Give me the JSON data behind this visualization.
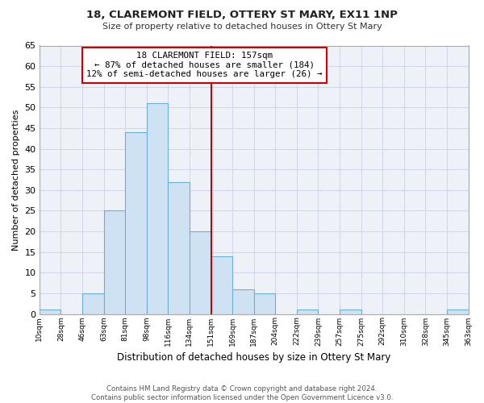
{
  "title": "18, CLAREMONT FIELD, OTTERY ST MARY, EX11 1NP",
  "subtitle": "Size of property relative to detached houses in Ottery St Mary",
  "xlabel": "Distribution of detached houses by size in Ottery St Mary",
  "ylabel": "Number of detached properties",
  "bin_labels": [
    "10sqm",
    "28sqm",
    "46sqm",
    "63sqm",
    "81sqm",
    "98sqm",
    "116sqm",
    "134sqm",
    "151sqm",
    "169sqm",
    "187sqm",
    "204sqm",
    "222sqm",
    "239sqm",
    "257sqm",
    "275sqm",
    "292sqm",
    "310sqm",
    "328sqm",
    "345sqm",
    "363sqm"
  ],
  "bar_heights": [
    1,
    0,
    5,
    25,
    44,
    51,
    32,
    20,
    14,
    6,
    5,
    0,
    1,
    0,
    1,
    0,
    0,
    0,
    0,
    1
  ],
  "bar_color": "#cfe2f3",
  "bar_edge_color": "#6baed6",
  "annotation_title": "18 CLAREMONT FIELD: 157sqm",
  "annotation_line1": "← 87% of detached houses are smaller (184)",
  "annotation_line2": "12% of semi-detached houses are larger (26) →",
  "marker_color": "#cc0000",
  "marker_bar_index": 8,
  "ylim": [
    0,
    65
  ],
  "yticks": [
    0,
    5,
    10,
    15,
    20,
    25,
    30,
    35,
    40,
    45,
    50,
    55,
    60,
    65
  ],
  "footer_line1": "Contains HM Land Registry data © Crown copyright and database right 2024.",
  "footer_line2": "Contains public sector information licensed under the Open Government Licence v3.0.",
  "bg_color": "#ffffff",
  "grid_color": "#d0d8e8",
  "plot_bg_color": "#eef2f8"
}
